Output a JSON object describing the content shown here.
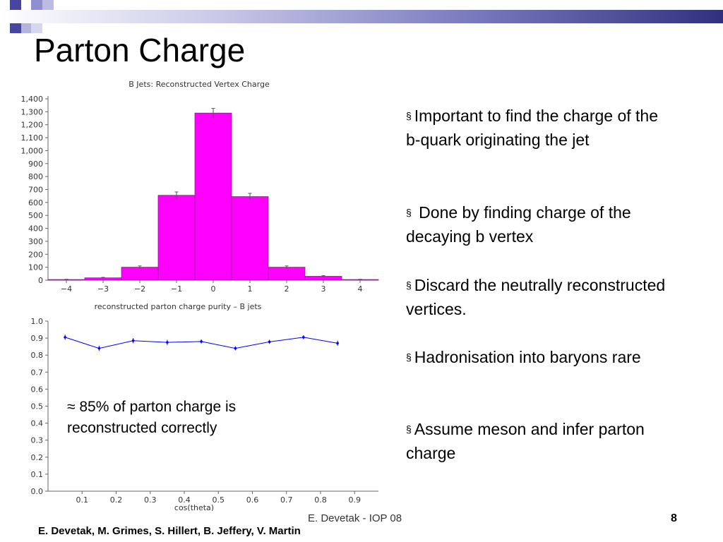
{
  "slide": {
    "title": "Parton Charge",
    "bullets": [
      "Important to find the charge of the b-quark originating the jet",
      " Done by finding charge of the decaying b vertex",
      "Discard the neutrally reconstructed vertices.",
      "Hadronisation into baryons rare",
      "Assume meson and infer parton charge"
    ],
    "bullet_mark": "§",
    "overlay_text": "≈ 85% of parton charge is reconstructed correctly",
    "footer_center": "E. Devetak - IOP 08",
    "footer_page": "8",
    "footer_authors": "E. Devetak, M. Grimes, S. Hillert, B. Jeffery, V. Martin"
  },
  "colors": {
    "bar_fill": "#ff00ff",
    "line_color": "#0000ff",
    "header_gradient_end": "#30307f"
  },
  "chart_data": [
    {
      "type": "bar",
      "title": "B Jets: Reconstructed Vertex Charge",
      "xlabel": "",
      "ylabel": "",
      "categories": [
        -4,
        -3,
        -2,
        -1,
        0,
        1,
        2,
        3,
        4
      ],
      "values": [
        5,
        18,
        100,
        655,
        1290,
        645,
        100,
        30,
        5
      ],
      "errors": [
        2,
        4,
        10,
        26,
        36,
        25,
        10,
        5,
        2
      ],
      "xlim": [
        -4.5,
        4.5
      ],
      "ylim": [
        0,
        1400
      ],
      "yticks": [
        0,
        100,
        200,
        300,
        400,
        500,
        600,
        700,
        800,
        900,
        1000,
        1100,
        1200,
        1300,
        1400
      ],
      "ytick_labels": [
        "0",
        "100",
        "200",
        "300",
        "400",
        "500",
        "600",
        "700",
        "800",
        "900",
        "1,000",
        "1,100",
        "1,200",
        "1,300",
        "1,400"
      ],
      "xticks": [
        -4,
        -3,
        -2,
        -1,
        0,
        1,
        2,
        3,
        4
      ],
      "xtick_labels": [
        "−4",
        "−3",
        "−2",
        "−1",
        "0",
        "1",
        "2",
        "3",
        "4"
      ],
      "grid": false
    },
    {
      "type": "line",
      "title": "reconstructed parton charge purity – B jets",
      "xlabel": "cos(theta)",
      "ylabel": "",
      "x": [
        0.05,
        0.15,
        0.25,
        0.35,
        0.45,
        0.55,
        0.65,
        0.75,
        0.85
      ],
      "y": [
        0.905,
        0.84,
        0.885,
        0.875,
        0.88,
        0.84,
        0.878,
        0.905,
        0.87
      ],
      "errors": [
        0.015,
        0.015,
        0.015,
        0.015,
        0.012,
        0.012,
        0.012,
        0.012,
        0.015
      ],
      "xlim": [
        0,
        0.97
      ],
      "ylim": [
        0,
        1.0
      ],
      "xticks": [
        0.1,
        0.2,
        0.3,
        0.4,
        0.5,
        0.6,
        0.7,
        0.8,
        0.9
      ],
      "xtick_labels": [
        "0.1",
        "0.2",
        "0.3",
        "0.4",
        "0.5",
        "0.6",
        "0.7",
        "0.8",
        "0.9"
      ],
      "yticks": [
        0,
        0.1,
        0.2,
        0.3,
        0.4,
        0.5,
        0.6,
        0.7,
        0.8,
        0.9,
        1.0
      ],
      "ytick_labels": [
        "0.0",
        "0.1",
        "0.2",
        "0.3",
        "0.4",
        "0.5",
        "0.6",
        "0.7",
        "0.8",
        "0.9",
        "1.0"
      ],
      "grid": false
    }
  ]
}
